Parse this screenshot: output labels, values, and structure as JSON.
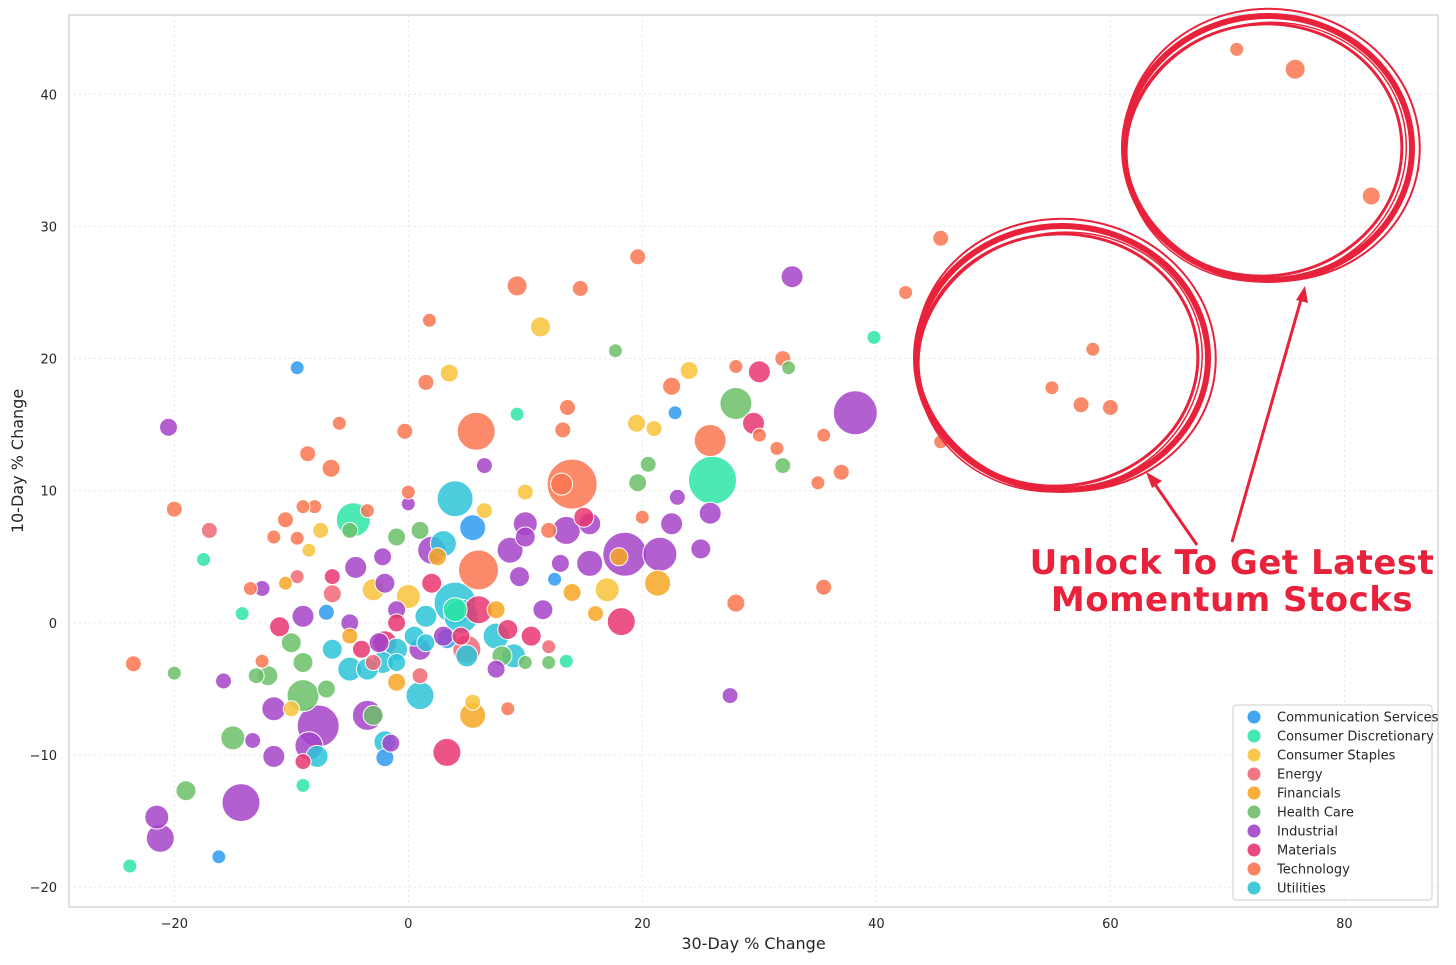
{
  "chart_data": {
    "type": "scatter",
    "title": "",
    "xlabel": "30-Day % Change",
    "ylabel": "10-Day % Change",
    "xlim": [
      -29,
      88
    ],
    "ylim": [
      -21.5,
      46
    ],
    "xticks": [
      -20,
      0,
      20,
      40,
      60,
      80
    ],
    "yticks": [
      -20,
      -10,
      0,
      10,
      20,
      30,
      40
    ],
    "grid": true,
    "legend_position": "bottom-right",
    "series": [
      {
        "name": "Communication Services",
        "color": "#2e9bf0",
        "points": [
          [
            -9.5,
            19.3,
            7
          ],
          [
            22.8,
            15.9,
            7
          ],
          [
            -16.2,
            -17.7,
            7
          ],
          [
            -2,
            -10.2,
            9
          ],
          [
            5.5,
            7.2,
            13
          ],
          [
            12.5,
            3.3,
            7
          ],
          [
            -7,
            0.8,
            8
          ],
          [
            3.3,
            -1.2,
            10
          ]
        ]
      },
      {
        "name": "Consumer Discretionary",
        "color": "#2de5a4",
        "points": [
          [
            39.8,
            21.6,
            7
          ],
          [
            26,
            10.8,
            24
          ],
          [
            -4.7,
            7.8,
            17
          ],
          [
            -17.5,
            4.8,
            7
          ],
          [
            -14.2,
            0.7,
            7
          ],
          [
            -23.8,
            -18.4,
            7
          ],
          [
            -9,
            -12.3,
            7
          ],
          [
            13.5,
            -2.9,
            7
          ],
          [
            9.3,
            15.8,
            7
          ],
          [
            4,
            1,
            12
          ]
        ]
      },
      {
        "name": "Consumer Staples",
        "color": "#f8c23a",
        "points": [
          [
            11.3,
            22.4,
            10
          ],
          [
            3.5,
            18.9,
            9
          ],
          [
            19.5,
            15.1,
            9
          ],
          [
            21,
            14.7,
            8
          ],
          [
            24,
            19.1,
            9
          ],
          [
            10,
            9.9,
            8
          ],
          [
            -7.5,
            7,
            8
          ],
          [
            -8.5,
            5.5,
            7
          ],
          [
            -3,
            2.5,
            11
          ],
          [
            5.5,
            -6,
            8
          ],
          [
            17,
            2.5,
            12
          ],
          [
            6.5,
            8.5,
            8
          ],
          [
            -10,
            -6.5,
            8
          ],
          [
            0,
            2,
            12
          ]
        ]
      },
      {
        "name": "Energy",
        "color": "#f06776",
        "points": [
          [
            -17,
            7,
            8
          ],
          [
            -9.5,
            3.5,
            7
          ],
          [
            12,
            -1.8,
            7
          ],
          [
            -6.5,
            2.2,
            9
          ],
          [
            5,
            -2,
            14
          ],
          [
            -3,
            -3,
            8
          ],
          [
            1,
            -4,
            8
          ]
        ]
      },
      {
        "name": "Financials",
        "color": "#f6a623",
        "points": [
          [
            5.5,
            -7,
            13
          ],
          [
            21.3,
            3,
            13
          ],
          [
            16,
            0.7,
            8
          ],
          [
            14,
            2.3,
            9
          ],
          [
            7.5,
            1,
            9
          ],
          [
            -5,
            -1,
            8
          ],
          [
            2.5,
            5,
            9
          ],
          [
            -10.5,
            3,
            7
          ],
          [
            18,
            5,
            9
          ],
          [
            -1,
            -4.5,
            9
          ]
        ]
      },
      {
        "name": "Health Care",
        "color": "#6cbf6a",
        "points": [
          [
            17.7,
            20.6,
            7
          ],
          [
            28,
            16.6,
            16
          ],
          [
            32.5,
            19.3,
            7
          ],
          [
            20.5,
            12,
            8
          ],
          [
            19.6,
            10.6,
            9
          ],
          [
            32,
            11.9,
            8
          ],
          [
            -5,
            7,
            8
          ],
          [
            -19,
            -12.7,
            10
          ],
          [
            -15,
            -8.7,
            12
          ],
          [
            -20,
            -3.8,
            7
          ],
          [
            -9,
            -3,
            10
          ],
          [
            -12,
            -4,
            10
          ],
          [
            -10,
            -1.5,
            10
          ],
          [
            -3,
            -7,
            10
          ],
          [
            -1,
            6.5,
            9
          ],
          [
            8,
            -2.5,
            10
          ],
          [
            12,
            -3,
            7
          ],
          [
            10,
            -3,
            7
          ],
          [
            -13,
            -4,
            8
          ],
          [
            -9,
            -5.5,
            16
          ],
          [
            1,
            7,
            9
          ],
          [
            -7,
            -5,
            9
          ]
        ]
      },
      {
        "name": "Industrial",
        "color": "#a443c8",
        "points": [
          [
            32.8,
            26.2,
            11
          ],
          [
            38.2,
            15.9,
            22
          ],
          [
            -20.5,
            14.8,
            9
          ],
          [
            -14.3,
            -13.6,
            19
          ],
          [
            -21.5,
            -14.7,
            12
          ],
          [
            -21.2,
            -16.3,
            14
          ],
          [
            -15.8,
            -4.4,
            8
          ],
          [
            -12.5,
            2.6,
            8
          ],
          [
            -7.7,
            -7.8,
            21
          ],
          [
            -8.5,
            -9.3,
            14
          ],
          [
            -11.5,
            -10.1,
            11
          ],
          [
            -13.3,
            -8.9,
            8
          ],
          [
            -11.5,
            -6.5,
            12
          ],
          [
            -9,
            0.5,
            11
          ],
          [
            -4.5,
            4.2,
            11
          ],
          [
            -2.2,
            5,
            9
          ],
          [
            -2.5,
            -1.5,
            10
          ],
          [
            -1.5,
            -9.1,
            9
          ],
          [
            -3.5,
            -7,
            15
          ],
          [
            -1,
            1,
            9
          ],
          [
            2,
            5.5,
            14
          ],
          [
            6.5,
            11.9,
            8
          ],
          [
            8.7,
            5.5,
            13
          ],
          [
            10,
            6.5,
            10
          ],
          [
            10,
            7.5,
            12
          ],
          [
            13.5,
            7,
            14
          ],
          [
            15.5,
            7.5,
            11
          ],
          [
            15.5,
            4.5,
            13
          ],
          [
            18.5,
            5.2,
            22
          ],
          [
            21.5,
            5.2,
            17
          ],
          [
            22.5,
            7.5,
            11
          ],
          [
            25,
            5.6,
            10
          ],
          [
            25.8,
            8.3,
            11
          ],
          [
            27.5,
            -5.5,
            8
          ],
          [
            23,
            9.5,
            8
          ],
          [
            9.5,
            3.5,
            10
          ],
          [
            7.5,
            -3.5,
            9
          ],
          [
            1,
            -2,
            11
          ],
          [
            -2,
            3,
            10
          ],
          [
            3,
            -1,
            10
          ],
          [
            13,
            4.5,
            9
          ],
          [
            11.5,
            1,
            10
          ],
          [
            0,
            9,
            7
          ],
          [
            -5,
            0,
            9
          ]
        ]
      },
      {
        "name": "Materials",
        "color": "#e8366f",
        "points": [
          [
            30,
            19,
            11
          ],
          [
            29.5,
            15.1,
            11
          ],
          [
            18.2,
            0.1,
            14
          ],
          [
            3.3,
            -9.8,
            14
          ],
          [
            -6.5,
            3.5,
            8
          ],
          [
            -11,
            -0.3,
            10
          ],
          [
            8.5,
            -0.5,
            10
          ],
          [
            6,
            1,
            14
          ],
          [
            -2,
            -1.5,
            12
          ],
          [
            4.5,
            -1,
            9
          ],
          [
            -9,
            -10.5,
            8
          ],
          [
            10.5,
            -1,
            10
          ],
          [
            15,
            8,
            10
          ],
          [
            -1,
            0,
            9
          ],
          [
            2,
            3,
            10
          ],
          [
            -4,
            -2,
            9
          ]
        ]
      },
      {
        "name": "Technology",
        "color": "#f97650",
        "points": [
          [
            9.3,
            25.5,
            10
          ],
          [
            14.7,
            25.3,
            8
          ],
          [
            19.6,
            27.7,
            8
          ],
          [
            1.8,
            22.9,
            7
          ],
          [
            1.5,
            18.2,
            8
          ],
          [
            -5.9,
            15.1,
            7
          ],
          [
            -0.3,
            14.5,
            8
          ],
          [
            -8.6,
            12.8,
            8
          ],
          [
            -6.6,
            11.7,
            9
          ],
          [
            -20,
            8.6,
            8
          ],
          [
            -10.5,
            7.8,
            8
          ],
          [
            -8,
            8.8,
            7
          ],
          [
            -11.5,
            6.5,
            7
          ],
          [
            -9,
            8.8,
            7
          ],
          [
            -9.5,
            6.4,
            7
          ],
          [
            0,
            9.9,
            7
          ],
          [
            -3.5,
            8.5,
            7
          ],
          [
            -13.5,
            2.6,
            7
          ],
          [
            -12.5,
            -2.9,
            7
          ],
          [
            -23.5,
            -3.1,
            8
          ],
          [
            5.8,
            14.5,
            19
          ],
          [
            13.2,
            14.6,
            8
          ],
          [
            13.6,
            16.3,
            8
          ],
          [
            13.1,
            10.5,
            11
          ],
          [
            14,
            10.5,
            25
          ],
          [
            6,
            4,
            20
          ],
          [
            22.5,
            17.9,
            9
          ],
          [
            25.8,
            13.8,
            16
          ],
          [
            28,
            19.4,
            7
          ],
          [
            31.5,
            13.2,
            7
          ],
          [
            32,
            20,
            8
          ],
          [
            30,
            14.2,
            7
          ],
          [
            35,
            10.6,
            7
          ],
          [
            35.5,
            14.2,
            7
          ],
          [
            37,
            11.4,
            8
          ],
          [
            35.5,
            2.7,
            8
          ],
          [
            28,
            1.5,
            9
          ],
          [
            42.5,
            25,
            7
          ],
          [
            45.5,
            29.1,
            8
          ],
          [
            45.5,
            13.7,
            7
          ],
          [
            55,
            17.8,
            7
          ],
          [
            57.5,
            16.5,
            8
          ],
          [
            58.5,
            20.7,
            7
          ],
          [
            60,
            16.3,
            8
          ],
          [
            70.8,
            43.4,
            7
          ],
          [
            75.8,
            41.9,
            10
          ],
          [
            82.3,
            32.3,
            9
          ],
          [
            8.5,
            -6.5,
            7
          ],
          [
            20,
            8,
            7
          ],
          [
            12,
            7,
            8
          ]
        ]
      },
      {
        "name": "Utilities",
        "color": "#2cc4d8",
        "points": [
          [
            4,
            9.4,
            18
          ],
          [
            4,
            1.5,
            21
          ],
          [
            4.5,
            0.5,
            17
          ],
          [
            7.5,
            -1,
            13
          ],
          [
            5,
            -2.5,
            11
          ],
          [
            9,
            -2.5,
            12
          ],
          [
            1.5,
            0.5,
            11
          ],
          [
            0.5,
            -1,
            10
          ],
          [
            -1,
            -2,
            11
          ],
          [
            -2.2,
            -3,
            11
          ],
          [
            -3.5,
            -3.5,
            11
          ],
          [
            -5,
            -3.5,
            12
          ],
          [
            -6.5,
            -2,
            10
          ],
          [
            -7.8,
            -10.1,
            11
          ],
          [
            -2,
            -9,
            11
          ],
          [
            1,
            -5.5,
            14
          ],
          [
            3,
            6,
            13
          ],
          [
            1.5,
            -1.5,
            9
          ],
          [
            -1,
            -3,
            9
          ]
        ]
      }
    ]
  },
  "promo": {
    "line1": "Unlock To Get Latest",
    "line2": "Momentum Stocks"
  }
}
